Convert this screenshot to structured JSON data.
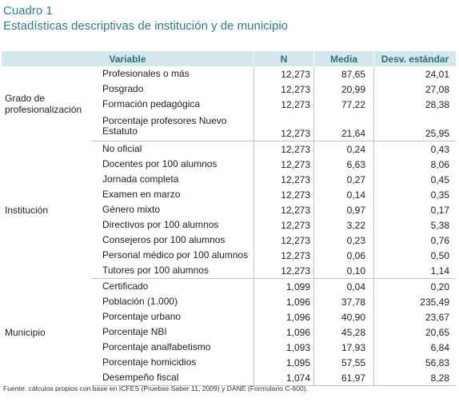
{
  "caption": {
    "label": "Cuadro 1",
    "title": "Estadísticas descriptivas de institución y de municipio"
  },
  "table": {
    "headers": [
      "Variable",
      "N",
      "Media",
      "Desv. estándar"
    ],
    "groups": [
      {
        "name": "Grado de profesionalización",
        "rows": [
          {
            "variable": "Profesionales o más",
            "n": "12,273",
            "media": "87,65",
            "sd": "24,01"
          },
          {
            "variable": "Posgrado",
            "n": "12,273",
            "media": "20,99",
            "sd": "27,08"
          },
          {
            "variable": "Formación pedagógica",
            "n": "12,273",
            "media": "77,22",
            "sd": "28,38"
          },
          {
            "variable": "Porcentaje profesores Nuevo Estatuto",
            "n": "12,273",
            "media": "21,64",
            "sd": "25,95"
          }
        ]
      },
      {
        "name": "Institución",
        "rows": [
          {
            "variable": "No oficial",
            "n": "12,273",
            "media": "0,24",
            "sd": "0,43"
          },
          {
            "variable": "Docentes por 100 alumnos",
            "n": "12,273",
            "media": "6,63",
            "sd": "8,06"
          },
          {
            "variable": "Jornada completa",
            "n": "12,273",
            "media": "0,27",
            "sd": "0,45"
          },
          {
            "variable": "Examen en marzo",
            "n": "12,273",
            "media": "0,14",
            "sd": "0,35"
          },
          {
            "variable": "Género mixto",
            "n": "12,273",
            "media": "0,97",
            "sd": "0,17"
          },
          {
            "variable": "Directivos por 100 alumnos",
            "n": "12,273",
            "media": "3,22",
            "sd": "5,38"
          },
          {
            "variable": "Consejeros por 100 alumnos",
            "n": "12,273",
            "media": "0,23",
            "sd": "0,76"
          },
          {
            "variable": "Personal médico por 100 alumnos",
            "n": "12,273",
            "media": "0,06",
            "sd": "0,50"
          },
          {
            "variable": "Tutores por 100 alumnos",
            "n": "12,273",
            "media": "0,10",
            "sd": "1,14"
          }
        ]
      },
      {
        "name": "Municipio",
        "rows": [
          {
            "variable": "Certificado",
            "n": "1,099",
            "media": "0,04",
            "sd": "0,20"
          },
          {
            "variable": "Población (1.000)",
            "n": "1,096",
            "media": "37,78",
            "sd": "235,49"
          },
          {
            "variable": "Porcentaje urbano",
            "n": "1,096",
            "media": "40,90",
            "sd": "23,67"
          },
          {
            "variable": "Porcentaje NBI",
            "n": "1,096",
            "media": "45,28",
            "sd": "20,65"
          },
          {
            "variable": "Porcentaje analfabetismo",
            "n": "1,093",
            "media": "17,93",
            "sd": "6,84"
          },
          {
            "variable": "Porcentaje homicidios",
            "n": "1,095",
            "media": "57,55",
            "sd": "56,83"
          },
          {
            "variable": "Desempeño fiscal",
            "n": "1,074",
            "media": "61,97",
            "sd": "8,28"
          }
        ]
      }
    ]
  },
  "source": "Fuente: cálculos propios con base en ICFES (Pruebas Saber 11, 2009) y DANE (Formulario C-600).",
  "colors": {
    "caption": "#2d7f86",
    "header_bg": "#d4e7ec",
    "header_text": "#2b6f7a",
    "rule": "#b9c6cf"
  }
}
